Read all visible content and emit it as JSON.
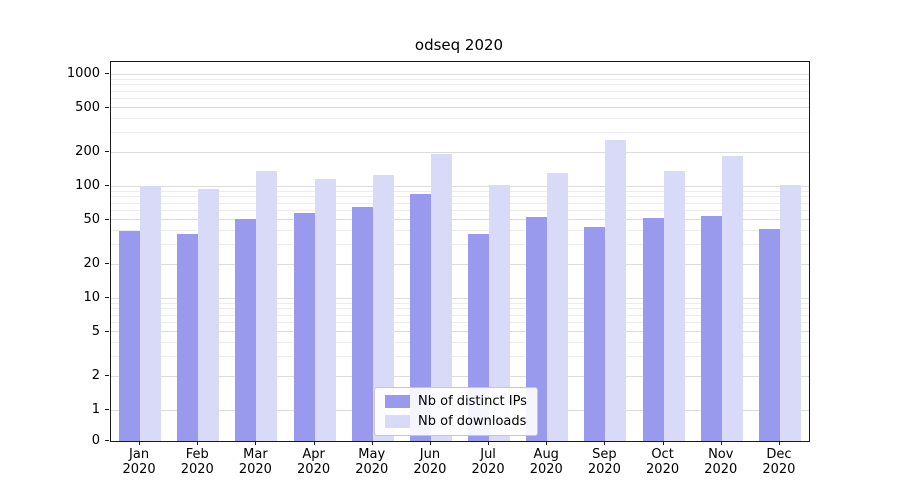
{
  "chart_data": {
    "type": "bar",
    "title": "odseq 2020",
    "xlabel": "",
    "ylabel": "",
    "yscale": "symlog",
    "grid": true,
    "legend_position": "lower center",
    "yticks": [
      0,
      1,
      2,
      5,
      10,
      20,
      50,
      100,
      200,
      500,
      1000
    ],
    "ylim": [
      0,
      1280
    ],
    "minor_gridlines": [
      3,
      4,
      6,
      7,
      8,
      9,
      30,
      40,
      60,
      70,
      80,
      90,
      300,
      400,
      600,
      700,
      800,
      900
    ],
    "categories": [
      "Jan 2020",
      "Feb 2020",
      "Mar 2020",
      "Apr 2020",
      "May 2020",
      "Jun 2020",
      "Jul 2020",
      "Aug 2020",
      "Sep 2020",
      "Oct 2020",
      "Nov 2020",
      "Dec 2020"
    ],
    "series": [
      {
        "name": "Nb of distinct IPs",
        "color": "#9999ed",
        "values": [
          40,
          37,
          51,
          58,
          65,
          85,
          37,
          53,
          43,
          52,
          54,
          41
        ]
      },
      {
        "name": "Nb of downloads",
        "color": "#d9d9f8",
        "values": [
          100,
          95,
          135,
          115,
          125,
          195,
          103,
          130,
          260,
          135,
          185,
          102
        ]
      }
    ]
  }
}
